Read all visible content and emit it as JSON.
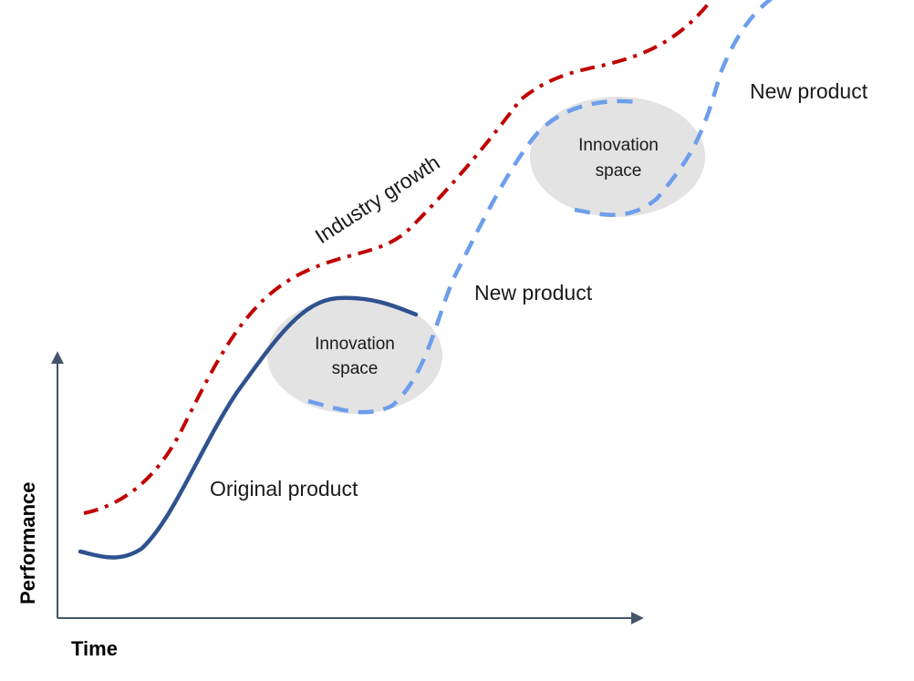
{
  "axes": {
    "x_label": "Time",
    "y_label": "Performance"
  },
  "curves": {
    "industry_growth": {
      "label": "Industry growth",
      "color": "#c00000"
    },
    "original_product": {
      "label": "Original product",
      "color": "#2f528f"
    },
    "new_product_1": {
      "label": "New product",
      "color": "#6d9eeb"
    },
    "new_product_2": {
      "label": "New product",
      "color": "#6d9eeb"
    }
  },
  "innovation_spaces": [
    {
      "line1": "Innovation",
      "line2": "space",
      "fill": "#e3e3e3"
    },
    {
      "line1": "Innovation",
      "line2": "space",
      "fill": "#e3e3e3"
    }
  ],
  "axis_color": "#44546a"
}
